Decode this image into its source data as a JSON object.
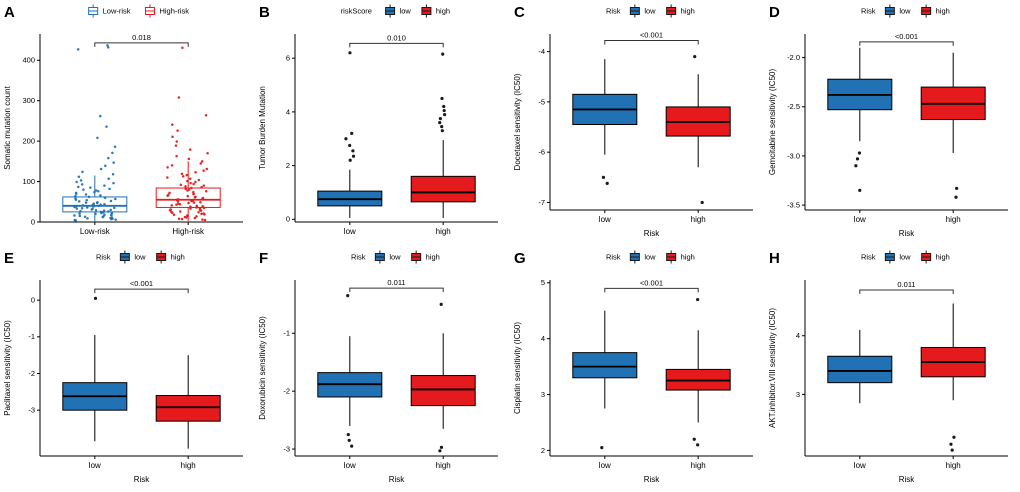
{
  "colors": {
    "low": "#2171B5",
    "high": "#E41A1C",
    "axis": "#000000",
    "outlier": "#1a1a1a"
  },
  "chart_data": [
    {
      "type": "box",
      "panel_label": "A",
      "legend_title": "",
      "legend": [
        {
          "label": "Low-risk",
          "key": "low"
        },
        {
          "label": "High-risk",
          "key": "high"
        }
      ],
      "p_value": "0.018",
      "p_y": 443,
      "ylabel": "Somatic mutation count",
      "xlabel": "",
      "categories": [
        "Low-risk",
        "High-risk"
      ],
      "ylim": [
        0,
        465
      ],
      "yticks": [
        0,
        100,
        200,
        300,
        400
      ],
      "ytick_labels": [
        "0",
        "100",
        "200",
        "300",
        "400"
      ],
      "box_style": "outline",
      "groups": [
        {
          "key": "low",
          "whisker_low": 2,
          "q1": 25,
          "median": 40,
          "q3": 62,
          "whisker_high": 115,
          "outliers": [],
          "points": [
            432,
            427,
            437,
            262,
            236,
            208,
            186,
            171,
            158,
            147,
            139,
            131,
            124,
            118,
            112,
            107,
            103,
            99,
            96,
            93,
            90,
            87,
            85,
            82,
            80,
            78,
            76,
            74,
            72,
            70,
            68,
            66,
            64,
            62,
            60,
            58,
            57,
            55,
            54,
            52,
            51,
            49,
            48,
            47,
            45,
            44,
            43,
            42,
            41,
            40,
            39,
            38,
            37,
            36,
            35,
            34,
            33,
            32,
            31,
            30,
            29,
            28,
            27,
            26,
            25,
            24,
            23,
            22,
            21,
            20,
            19,
            18,
            17,
            16,
            15,
            14,
            13,
            12,
            11,
            10,
            9,
            8,
            7,
            6,
            5,
            4
          ]
        },
        {
          "key": "high",
          "whisker_low": 3,
          "q1": 36,
          "median": 55,
          "q3": 84,
          "whisker_high": 150,
          "outliers": [],
          "points": [
            431,
            308,
            264,
            241,
            226,
            211,
            199,
            189,
            179,
            170,
            163,
            156,
            150,
            145,
            140,
            135,
            131,
            127,
            123,
            119,
            116,
            113,
            110,
            107,
            104,
            101,
            99,
            96,
            94,
            92,
            90,
            88,
            86,
            84,
            82,
            80,
            78,
            76,
            74,
            72,
            70,
            69,
            67,
            65,
            64,
            62,
            61,
            59,
            58,
            56,
            55,
            53,
            52,
            51,
            49,
            48,
            47,
            45,
            44,
            43,
            41,
            40,
            39,
            38,
            36,
            35,
            34,
            33,
            31,
            30,
            29,
            28,
            26,
            25,
            24,
            23,
            21,
            20,
            19,
            18,
            16,
            15,
            14,
            12,
            11,
            10,
            8,
            7,
            6,
            5
          ]
        }
      ]
    },
    {
      "type": "box",
      "panel_label": "B",
      "legend_title": "riskScore",
      "legend": [
        {
          "label": "low",
          "key": "low"
        },
        {
          "label": "high",
          "key": "high"
        }
      ],
      "p_value": "0.010",
      "p_y": 6.55,
      "ylabel": "Tumor Burden Mutation",
      "xlabel": "",
      "categories": [
        "low",
        "high"
      ],
      "ylim": [
        -0.1,
        6.9
      ],
      "yticks": [
        0,
        2,
        4,
        6
      ],
      "ytick_labels": [
        "0",
        "2",
        "4",
        "6"
      ],
      "box_style": "fill",
      "groups": [
        {
          "key": "low",
          "whisker_low": 0.05,
          "q1": 0.5,
          "median": 0.75,
          "q3": 1.05,
          "whisker_high": 1.85,
          "outliers": [
            2.2,
            2.35,
            2.55,
            2.75,
            3.0,
            3.2,
            6.2
          ],
          "points": []
        },
        {
          "key": "high",
          "whisker_low": 0.05,
          "q1": 0.65,
          "median": 1.0,
          "q3": 1.6,
          "whisker_high": 2.95,
          "outliers": [
            3.3,
            3.45,
            3.6,
            3.75,
            3.9,
            4.05,
            4.2,
            4.5,
            6.15
          ],
          "points": []
        }
      ]
    },
    {
      "type": "box",
      "panel_label": "C",
      "legend_title": "Risk",
      "legend": [
        {
          "label": "low",
          "key": "low"
        },
        {
          "label": "high",
          "key": "high"
        }
      ],
      "p_value": "<0.001",
      "p_y": -3.78,
      "ylabel": "Docetaxel sensitivity (IC50)",
      "xlabel": "Risk",
      "categories": [
        "low",
        "high"
      ],
      "ylim": [
        -7.15,
        -3.65
      ],
      "yticks": [
        -7,
        -6,
        -5,
        -4
      ],
      "ytick_labels": [
        "-7",
        "-6",
        "-5",
        "-4"
      ],
      "box_style": "fill",
      "groups": [
        {
          "key": "low",
          "whisker_low": -6.05,
          "q1": -5.45,
          "median": -5.15,
          "q3": -4.85,
          "whisker_high": -4.15,
          "outliers": [
            -6.5,
            -6.62
          ],
          "points": []
        },
        {
          "key": "high",
          "whisker_low": -6.3,
          "q1": -5.68,
          "median": -5.4,
          "q3": -5.1,
          "whisker_high": -4.45,
          "outliers": [
            -7.0,
            -4.1
          ],
          "points": []
        }
      ]
    },
    {
      "type": "box",
      "panel_label": "D",
      "legend_title": "Risk",
      "legend": [
        {
          "label": "low",
          "key": "low"
        },
        {
          "label": "high",
          "key": "high"
        }
      ],
      "p_value": "<0.001",
      "p_y": -1.84,
      "ylabel": "Gemcitabine sensitivity (IC50)",
      "xlabel": "Risk",
      "categories": [
        "low",
        "high"
      ],
      "ylim": [
        -3.55,
        -1.76
      ],
      "yticks": [
        -3.5,
        -3.0,
        -2.5,
        -2.0
      ],
      "ytick_labels": [
        "-3.5",
        "-3.0",
        "-2.5",
        "-2.0"
      ],
      "box_style": "fill",
      "groups": [
        {
          "key": "low",
          "whisker_low": -2.85,
          "q1": -2.53,
          "median": -2.38,
          "q3": -2.22,
          "whisker_high": -1.9,
          "outliers": [
            -2.97,
            -3.03,
            -3.1,
            -3.35
          ],
          "points": []
        },
        {
          "key": "high",
          "whisker_low": -2.97,
          "q1": -2.63,
          "median": -2.47,
          "q3": -2.3,
          "whisker_high": -1.95,
          "outliers": [
            -3.33,
            -3.42
          ],
          "points": []
        }
      ]
    },
    {
      "type": "box",
      "panel_label": "E",
      "legend_title": "Risk",
      "legend": [
        {
          "label": "low",
          "key": "low"
        },
        {
          "label": "high",
          "key": "high"
        }
      ],
      "p_value": "<0.001",
      "p_y": 0.3,
      "ylabel": "Paclitaxel sensitivity (IC50)",
      "xlabel": "Risk",
      "categories": [
        "low",
        "high"
      ],
      "ylim": [
        -4.25,
        0.55
      ],
      "yticks": [
        -3,
        -2,
        -1,
        0
      ],
      "ytick_labels": [
        "-3",
        "-2",
        "-1",
        "0"
      ],
      "box_style": "fill",
      "groups": [
        {
          "key": "low",
          "whisker_low": -3.85,
          "q1": -3.0,
          "median": -2.62,
          "q3": -2.25,
          "whisker_high": -0.95,
          "outliers": [
            0.05
          ],
          "points": []
        },
        {
          "key": "high",
          "whisker_low": -4.05,
          "q1": -3.3,
          "median": -2.92,
          "q3": -2.6,
          "whisker_high": -1.5,
          "outliers": [],
          "points": []
        }
      ]
    },
    {
      "type": "box",
      "panel_label": "F",
      "legend_title": "Risk",
      "legend": [
        {
          "label": "low",
          "key": "low"
        },
        {
          "label": "high",
          "key": "high"
        }
      ],
      "p_value": "0.011",
      "p_y": -0.22,
      "ylabel": "Doxorubicin sensitivity (IC50)",
      "xlabel": "Risk",
      "categories": [
        "low",
        "high"
      ],
      "ylim": [
        -3.12,
        -0.08
      ],
      "yticks": [
        -3,
        -2,
        -1
      ],
      "ytick_labels": [
        "-3",
        "-2",
        "-1"
      ],
      "box_style": "fill",
      "groups": [
        {
          "key": "low",
          "whisker_low": -2.6,
          "q1": -2.1,
          "median": -1.88,
          "q3": -1.68,
          "whisker_high": -1.05,
          "outliers": [
            -2.75,
            -2.85,
            -2.95,
            -0.35
          ],
          "points": []
        },
        {
          "key": "high",
          "whisker_low": -2.65,
          "q1": -2.25,
          "median": -1.97,
          "q3": -1.73,
          "whisker_high": -1.0,
          "outliers": [
            -2.97,
            -3.03,
            -0.5
          ],
          "points": []
        }
      ]
    },
    {
      "type": "box",
      "panel_label": "G",
      "legend_title": "Risk",
      "legend": [
        {
          "label": "low",
          "key": "low"
        },
        {
          "label": "high",
          "key": "high"
        }
      ],
      "p_value": "<0.001",
      "p_y": 4.9,
      "ylabel": "Cisplatin sensitivity (IC50)",
      "xlabel": "Risk",
      "categories": [
        "low",
        "high"
      ],
      "ylim": [
        1.9,
        5.05
      ],
      "yticks": [
        2,
        3,
        4,
        5
      ],
      "ytick_labels": [
        "2",
        "3",
        "4",
        "5"
      ],
      "box_style": "fill",
      "groups": [
        {
          "key": "low",
          "whisker_low": 2.75,
          "q1": 3.3,
          "median": 3.5,
          "q3": 3.75,
          "whisker_high": 4.5,
          "outliers": [
            2.05
          ],
          "points": []
        },
        {
          "key": "high",
          "whisker_low": 2.5,
          "q1": 3.08,
          "median": 3.25,
          "q3": 3.45,
          "whisker_high": 4.15,
          "outliers": [
            2.1,
            2.2,
            4.7
          ],
          "points": []
        }
      ]
    },
    {
      "type": "box",
      "panel_label": "H",
      "legend_title": "Risk",
      "legend": [
        {
          "label": "low",
          "key": "low"
        },
        {
          "label": "high",
          "key": "high"
        }
      ],
      "p_value": "0.011",
      "p_y": 4.78,
      "ylabel": "AKT.inhibitor.VIII sensitivity (IC50)",
      "xlabel": "Risk",
      "categories": [
        "low",
        "high"
      ],
      "ylim": [
        1.95,
        4.95
      ],
      "yticks": [
        3,
        4
      ],
      "ytick_labels": [
        "3",
        "4"
      ],
      "box_style": "fill",
      "groups": [
        {
          "key": "low",
          "whisker_low": 2.85,
          "q1": 3.2,
          "median": 3.4,
          "q3": 3.65,
          "whisker_high": 4.1,
          "outliers": [],
          "points": []
        },
        {
          "key": "high",
          "whisker_low": 2.9,
          "q1": 3.3,
          "median": 3.55,
          "q3": 3.8,
          "whisker_high": 4.55,
          "outliers": [
            2.05,
            2.15,
            2.27
          ],
          "points": []
        }
      ]
    }
  ]
}
